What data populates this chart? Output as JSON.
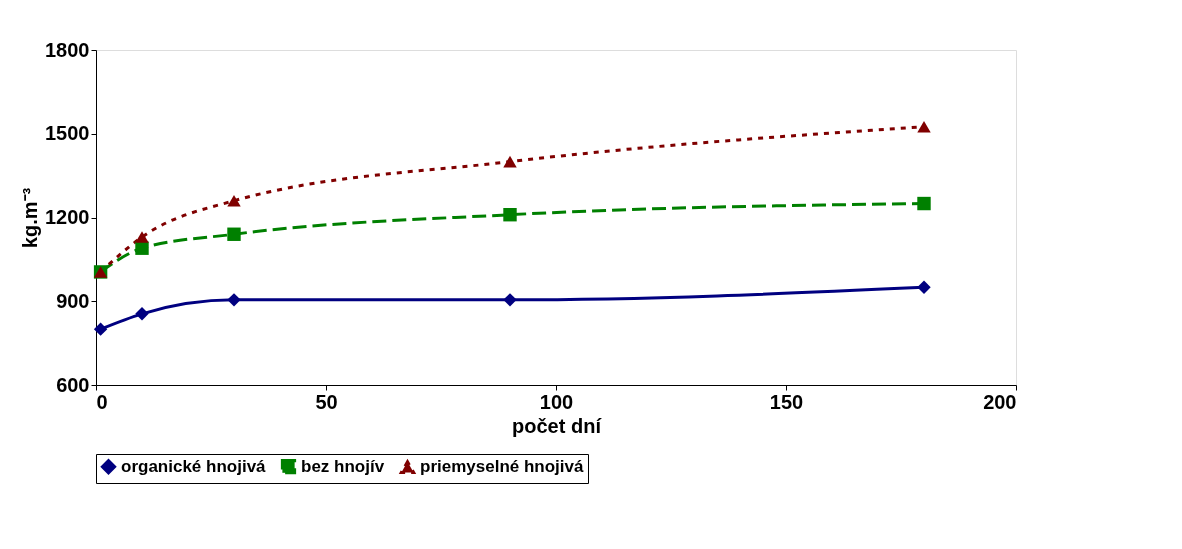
{
  "chart_data": {
    "type": "line",
    "xlabel": "počet dní",
    "ylabel": "kg.m⁻³",
    "x": [
      1,
      10,
      30,
      90,
      180
    ],
    "series": [
      {
        "name": "organické hnojivá",
        "color": "#000080",
        "marker": "diamond",
        "line_style": "solid",
        "values": [
          800,
          855,
          905,
          905,
          950
        ]
      },
      {
        "name": "bez hnojív",
        "color": "#008000",
        "marker": "square",
        "line_style": "dashed",
        "values": [
          1005,
          1090,
          1140,
          1210,
          1250
        ]
      },
      {
        "name": "priemyselné hnojivá",
        "color": "#800000",
        "marker": "triangle",
        "line_style": "dotted",
        "values": [
          1005,
          1130,
          1260,
          1400,
          1525
        ]
      }
    ],
    "xlim": [
      0,
      200
    ],
    "xticks": [
      0,
      50,
      100,
      150,
      200
    ],
    "ylim": [
      600,
      1800
    ],
    "yticks": [
      600,
      900,
      1200,
      1500,
      1800
    ],
    "grid": false,
    "legend": "bottom"
  }
}
